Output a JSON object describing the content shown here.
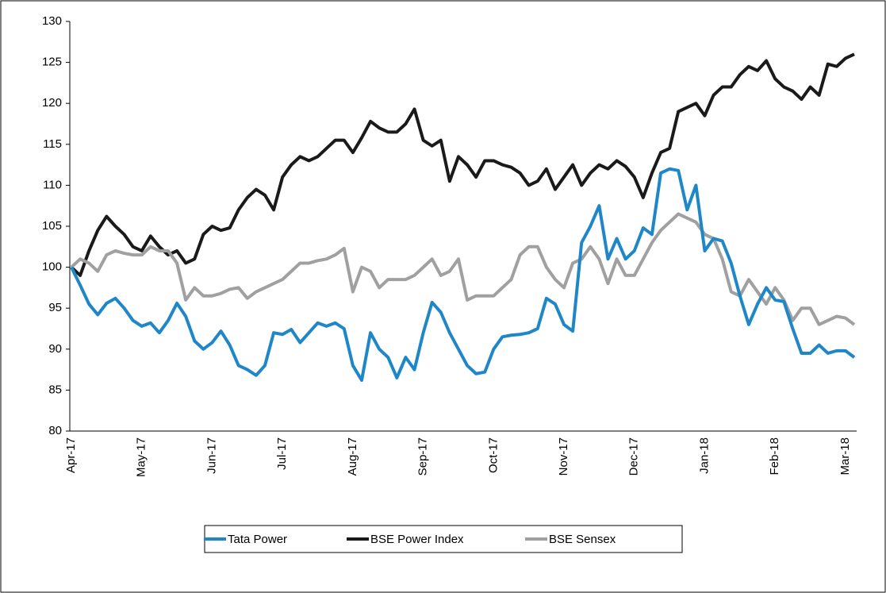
{
  "chart_data": {
    "type": "line",
    "categories": [
      "Apr-17",
      null,
      null,
      null,
      null,
      null,
      null,
      null,
      "May-17",
      null,
      null,
      null,
      null,
      null,
      null,
      null,
      "Jun-17",
      null,
      null,
      null,
      null,
      null,
      null,
      null,
      "Jul-17",
      null,
      null,
      null,
      null,
      null,
      null,
      null,
      "Aug-17",
      null,
      null,
      null,
      null,
      null,
      null,
      null,
      "Sep-17",
      null,
      null,
      null,
      null,
      null,
      null,
      null,
      "Oct-17",
      null,
      null,
      null,
      null,
      null,
      null,
      null,
      "Nov-17",
      null,
      null,
      null,
      null,
      null,
      null,
      null,
      "Dec-17",
      null,
      null,
      null,
      null,
      null,
      null,
      null,
      "Jan-18",
      null,
      null,
      null,
      null,
      null,
      null,
      null,
      "Feb-18",
      null,
      null,
      null,
      null,
      null,
      null,
      null,
      "Mar-18",
      null
    ],
    "series": [
      {
        "name": "Tata Power",
        "color": "#1f87c8",
        "values": [
          100,
          97.8,
          95.5,
          94.2,
          95.6,
          96.2,
          95,
          93.5,
          92.8,
          93.2,
          92,
          93.5,
          95.6,
          94,
          91,
          90,
          90.8,
          92.2,
          90.5,
          88,
          87.5,
          86.8,
          88,
          92,
          91.8,
          92.4,
          90.8,
          92,
          93.2,
          92.8,
          93.2,
          92.5,
          88,
          86.2,
          92,
          90,
          89,
          86.5,
          89,
          87.5,
          92,
          95.7,
          94.5,
          92,
          90,
          88,
          87,
          87.2,
          90,
          91.5,
          91.7,
          91.8,
          92,
          92.5,
          96.2,
          95.5,
          93,
          92.2,
          103,
          105,
          107.5,
          101,
          103.5,
          101,
          102,
          104.8,
          104,
          111.5,
          112,
          111.8,
          107,
          110,
          102,
          103.5,
          103.2,
          100.5,
          96.5,
          93,
          95.5,
          97.5,
          96,
          95.8,
          92.5,
          89.5,
          89.5,
          90.5,
          89.5,
          89.8,
          89.8,
          89
        ]
      },
      {
        "name": "BSE Power Index",
        "color": "#1a1a1a",
        "values": [
          100,
          99,
          102,
          104.5,
          106.2,
          105,
          104,
          102.5,
          102,
          103.8,
          102.5,
          101.5,
          102,
          100.5,
          101,
          104,
          105,
          104.5,
          104.8,
          107,
          108.5,
          109.5,
          108.8,
          107,
          111,
          112.5,
          113.5,
          113,
          113.5,
          114.5,
          115.5,
          115.5,
          114,
          115.8,
          117.8,
          117,
          116.5,
          116.5,
          117.5,
          119.3,
          115.5,
          114.8,
          115.5,
          110.5,
          113.5,
          112.5,
          111,
          113,
          113,
          112.5,
          112.2,
          111.5,
          110,
          110.5,
          112,
          109.5,
          111,
          112.5,
          110,
          111.5,
          112.5,
          112,
          113,
          112.3,
          111,
          108.5,
          111.5,
          114,
          114.5,
          119,
          119.5,
          120,
          118.5,
          121,
          122,
          122,
          123.5,
          124.5,
          124,
          125.2,
          123,
          122,
          121.5,
          120.5,
          122,
          121,
          124.8,
          124.5,
          125.5,
          126
        ]
      },
      {
        "name": "BSE Sensex",
        "color": "#a0a0a0",
        "values": [
          100,
          101,
          100.5,
          99.5,
          101.5,
          102,
          101.7,
          101.5,
          101.5,
          102.5,
          102,
          102,
          100.5,
          96,
          97.5,
          96.5,
          96.5,
          96.8,
          97.3,
          97.5,
          96.2,
          97,
          97.5,
          98,
          98.5,
          99.5,
          100.5,
          100.5,
          100.8,
          101,
          101.5,
          102.3,
          97,
          100,
          99.5,
          97.5,
          98.5,
          98.5,
          98.5,
          99,
          100,
          101,
          99,
          99.5,
          101,
          96,
          96.5,
          96.5,
          96.5,
          97.5,
          98.5,
          101.5,
          102.5,
          102.5,
          100,
          98.5,
          97.5,
          100.5,
          101,
          102.5,
          101,
          98,
          101,
          99,
          99,
          101,
          103,
          104.5,
          105.5,
          106.5,
          106,
          105.5,
          104,
          103.5,
          101,
          97,
          96.5,
          98.5,
          97,
          95.5,
          97.5,
          96,
          93.5,
          95,
          95,
          93,
          93.5,
          94,
          93.8,
          93
        ]
      }
    ],
    "ylim": [
      80,
      130
    ],
    "yticks": [
      80,
      85,
      90,
      95,
      100,
      105,
      110,
      115,
      120,
      125,
      130
    ],
    "legend": "bottom"
  }
}
